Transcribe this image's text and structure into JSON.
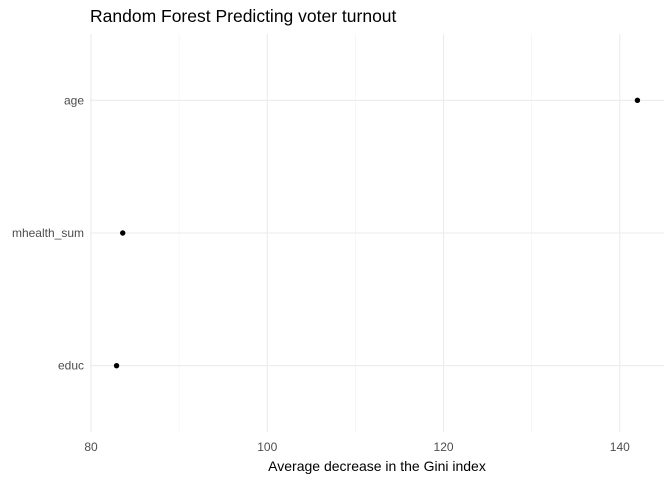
{
  "chart_data": {
    "type": "scatter",
    "title": "Random Forest Predicting voter turnout",
    "xlabel": "Average decrease in the Gini index",
    "ylabel": "",
    "categories": [
      "age",
      "mhealth_sum",
      "educ"
    ],
    "values": [
      142.0,
      83.6,
      82.9
    ],
    "xlim": [
      80,
      145
    ],
    "xticks": [
      80,
      100,
      120,
      140
    ],
    "grid": true,
    "legend": "none"
  }
}
